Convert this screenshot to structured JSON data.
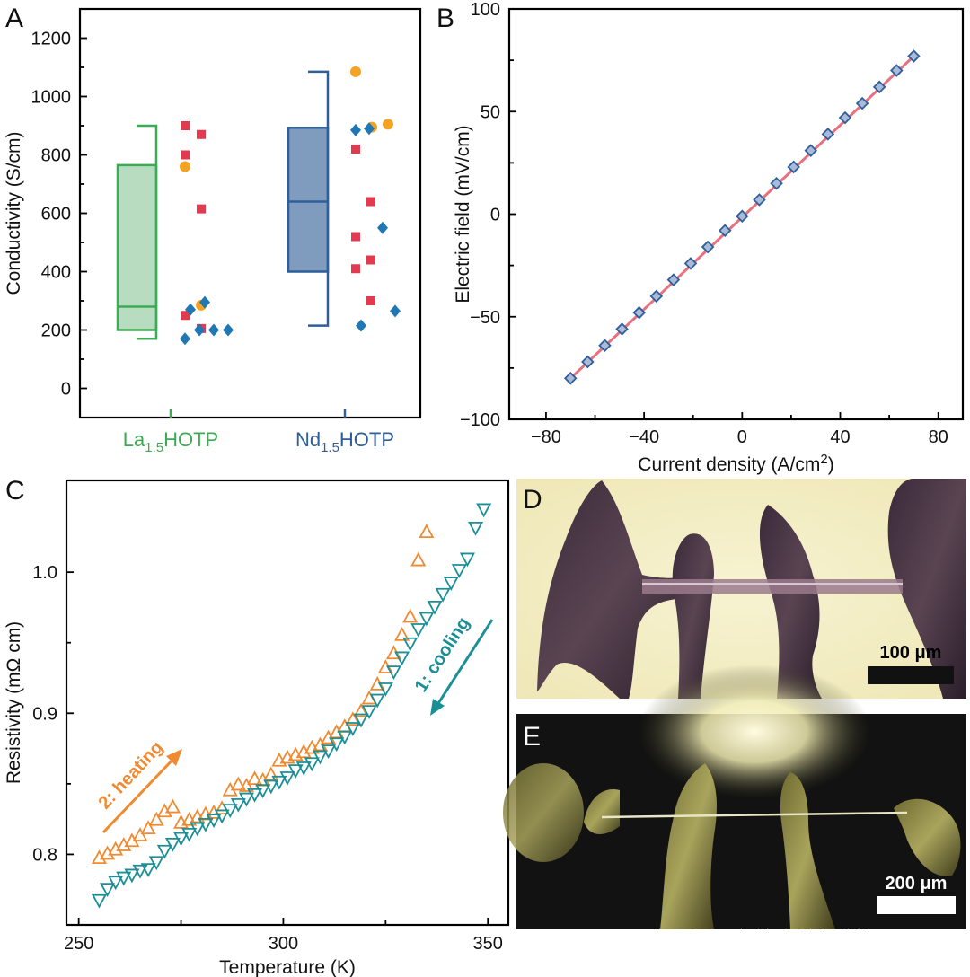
{
  "panel_labels": {
    "a": "A",
    "b": "B",
    "c": "C",
    "d": "D",
    "e": "E"
  },
  "colors": {
    "green": "#3cab54",
    "green_fill": "#b7dcc0",
    "blue": "#2e5f9b",
    "blue_fill": "#7f9cbf",
    "red": "#e23a4e",
    "orange": "#f2a324",
    "diamond": "#1f77b4",
    "line_red": "#e8707f",
    "heating": "#f08a30",
    "cooling": "#1b8f96"
  },
  "watermark": "知乎 @高效产能源前沿",
  "chart_data": [
    {
      "id": "A",
      "type": "box",
      "ylabel": "Conductivity (S/cm)",
      "ylim": [
        -100,
        1300
      ],
      "yticks": [
        0,
        200,
        400,
        600,
        800,
        1000,
        1200
      ],
      "groups": [
        {
          "name": "La",
          "sub": "1.5",
          "suffix": "HOTP",
          "whisker_low": 170,
          "q1": 200,
          "median": 280,
          "q3": 765,
          "whisker_high": 900,
          "squares": [
            900,
            870,
            800,
            615,
            250,
            205
          ],
          "circles": [
            760,
            285
          ],
          "diamonds": [
            170,
            200,
            200,
            200,
            270,
            295
          ]
        },
        {
          "name": "Nd",
          "sub": "1.5",
          "suffix": "HOTP",
          "whisker_low": 215,
          "q1": 400,
          "median": 640,
          "q3": 893,
          "whisker_high": 1085,
          "squares": [
            820,
            640,
            520,
            440,
            410,
            300
          ],
          "circles": [
            1085,
            895,
            905
          ],
          "diamonds": [
            885,
            890,
            550,
            265,
            215
          ]
        }
      ]
    },
    {
      "id": "B",
      "type": "scatter",
      "xlabel": "Current density (A/cm",
      "xlabel_sup": "2",
      "xlabel_end": ")",
      "ylabel": "Electric field (mV/cm)",
      "xlim": [
        -95,
        90
      ],
      "ylim": [
        -100,
        100
      ],
      "xticks": [
        -80,
        -40,
        0,
        40,
        80
      ],
      "yticks": [
        -100,
        -50,
        0,
        50,
        100
      ],
      "slope": 1.1,
      "x": [
        -70,
        -63,
        -56,
        -49,
        -42,
        -35,
        -28,
        -21,
        -14,
        -7,
        0,
        7,
        14,
        21,
        28,
        35,
        42,
        49,
        56,
        63,
        70
      ],
      "y": [
        -80,
        -72,
        -64,
        -56,
        -48,
        -40,
        -32,
        -24,
        -16,
        -8,
        -1,
        7,
        15,
        23,
        31,
        39,
        47,
        54,
        62,
        70,
        77
      ]
    },
    {
      "id": "C",
      "type": "scatter",
      "xlabel": "Temperature (K)",
      "ylabel": "Resistivity (mΩ cm)",
      "xlim": [
        247,
        355
      ],
      "ylim": [
        0.75,
        1.065
      ],
      "xticks": [
        250,
        300,
        350
      ],
      "yticks": [
        0.8,
        0.9,
        1.0
      ],
      "series": [
        {
          "name": "2: heating",
          "x": [
            255,
            257,
            259,
            261,
            263,
            265,
            267,
            269,
            271,
            273,
            275,
            277,
            279,
            281,
            283,
            285,
            287,
            289,
            291,
            293,
            295,
            297,
            299,
            301,
            303,
            305,
            307,
            309,
            311,
            313,
            315,
            317,
            319,
            321,
            323,
            325,
            327,
            329,
            331,
            333,
            335
          ],
          "y": [
            0.797,
            0.8,
            0.803,
            0.806,
            0.809,
            0.813,
            0.818,
            0.824,
            0.83,
            0.833,
            0.822,
            0.824,
            0.826,
            0.828,
            0.829,
            0.832,
            0.845,
            0.849,
            0.848,
            0.853,
            0.852,
            0.856,
            0.866,
            0.868,
            0.87,
            0.872,
            0.875,
            0.877,
            0.882,
            0.886,
            0.89,
            0.895,
            0.901,
            0.91,
            0.92,
            0.932,
            0.942,
            0.955,
            0.968,
            1.008,
            1.028
          ]
        },
        {
          "name": "1: cooling",
          "x": [
            255,
            257,
            259,
            261,
            263,
            265,
            267,
            269,
            271,
            273,
            275,
            277,
            279,
            281,
            283,
            285,
            287,
            289,
            291,
            293,
            295,
            297,
            299,
            301,
            303,
            305,
            307,
            309,
            311,
            313,
            315,
            317,
            319,
            321,
            323,
            325,
            327,
            329,
            331,
            333,
            335,
            337,
            339,
            341,
            343,
            345,
            347,
            349
          ],
          "y": [
            0.768,
            0.776,
            0.781,
            0.784,
            0.786,
            0.789,
            0.79,
            0.795,
            0.803,
            0.808,
            0.812,
            0.815,
            0.819,
            0.822,
            0.825,
            0.828,
            0.832,
            0.836,
            0.84,
            0.843,
            0.846,
            0.849,
            0.852,
            0.855,
            0.86,
            0.862,
            0.865,
            0.87,
            0.874,
            0.879,
            0.884,
            0.89,
            0.896,
            0.902,
            0.91,
            0.918,
            0.93,
            0.94,
            0.95,
            0.96,
            0.968,
            0.976,
            0.985,
            0.993,
            1.002,
            1.01,
            1.032,
            1.045
          ]
        }
      ]
    }
  ],
  "images": {
    "d": {
      "scale_bar": "100 μm"
    },
    "e": {
      "scale_bar": "200 μm"
    }
  }
}
